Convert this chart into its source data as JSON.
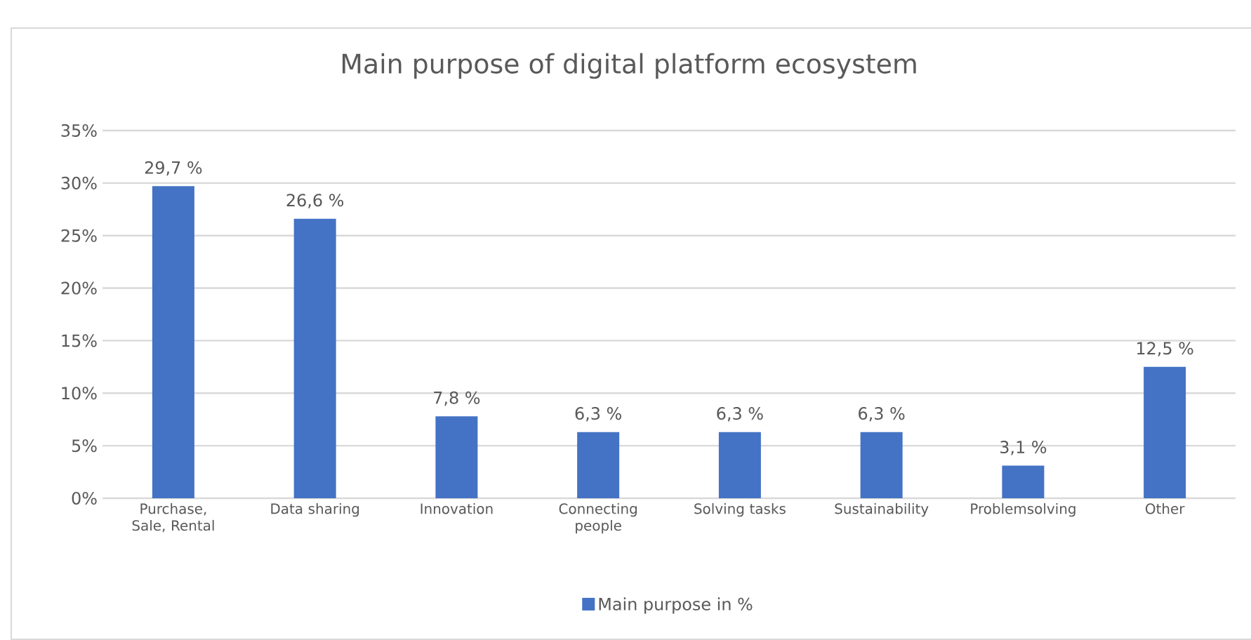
{
  "chart_data": {
    "type": "bar",
    "title": "Main purpose of digital platform ecosystem",
    "categories": [
      "Purchase, Sale, Rental",
      "Data sharing",
      "Innovation",
      "Connecting people",
      "Solving tasks",
      "Sustainability",
      "Problemsolving",
      "Other"
    ],
    "series": [
      {
        "name": "Main purpose in %",
        "color": "#4472c4",
        "values": [
          29.7,
          26.6,
          7.8,
          6.3,
          6.3,
          6.3,
          3.1,
          12.5
        ],
        "value_labels": [
          "29,7 %",
          "26,6 %",
          "7,8 %",
          "6,3 %",
          "6,3 %",
          "6,3 %",
          "3,1 %",
          "12,5 %"
        ]
      }
    ],
    "ylim": [
      0,
      35
    ],
    "yticks": [
      {
        "value": 0,
        "label": "0%"
      },
      {
        "value": 5,
        "label": "5%"
      },
      {
        "value": 10,
        "label": "10%"
      },
      {
        "value": 15,
        "label": "15%"
      },
      {
        "value": 20,
        "label": "20%"
      },
      {
        "value": 25,
        "label": "25%"
      },
      {
        "value": 30,
        "label": "30%"
      },
      {
        "value": 35,
        "label": "35%"
      }
    ],
    "grid": "y",
    "legend": "bottom"
  }
}
